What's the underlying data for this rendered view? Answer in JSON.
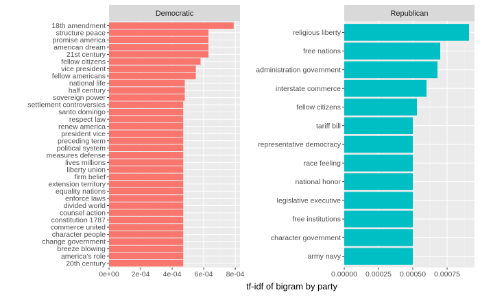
{
  "chart_data": {
    "type": "bar",
    "orientation": "horizontal",
    "xlabel": "tf-idf of bigram by party",
    "panels": [
      {
        "name": "Democratic",
        "color": "#F8766D",
        "xlim": [
          0,
          0.00083
        ],
        "xticks": [
          0,
          0.0002,
          0.0004,
          0.0006,
          0.0008
        ],
        "xtick_labels": [
          "0e+00",
          "2e-04",
          "4e-04",
          "6e-04",
          "8e-04"
        ],
        "categories": [
          "18th amendment",
          "structure peace",
          "promise america",
          "american dream",
          "21st century",
          "fellow citizens",
          "vice president",
          "fellow americans",
          "national life",
          "half century",
          "sovereign power",
          "settlement controversies",
          "santo domingo",
          "respect law",
          "renew america",
          "president vice",
          "preceding term",
          "political system",
          "measures defense",
          "lives millions",
          "liberty union",
          "firm belief",
          "extension territory",
          "equality nations",
          "enforce laws",
          "divided world",
          "counsel action",
          "constitution 1787",
          "commerce united",
          "character people",
          "change government",
          "breeze blowing",
          "america's role",
          "20th century"
        ],
        "values": [
          0.00079,
          0.00063,
          0.00063,
          0.00063,
          0.00063,
          0.00058,
          0.00055,
          0.00055,
          0.00048,
          0.00048,
          0.00048,
          0.00047,
          0.00047,
          0.00047,
          0.00047,
          0.00047,
          0.00047,
          0.00047,
          0.00047,
          0.00047,
          0.00047,
          0.00047,
          0.00047,
          0.00047,
          0.00047,
          0.00047,
          0.00047,
          0.00047,
          0.00047,
          0.00047,
          0.00047,
          0.00047,
          0.00047,
          0.00047
        ]
      },
      {
        "name": "Republican",
        "color": "#00BFC4",
        "xlim": [
          0,
          0.00095
        ],
        "xticks": [
          0,
          0.00025,
          0.0005,
          0.00075
        ],
        "xtick_labels": [
          "0.00000",
          "0.00025",
          "0.00050",
          "0.00075"
        ],
        "categories": [
          "religious liberty",
          "free nations",
          "administration government",
          "interstate commerce",
          "fellow citizens",
          "tariff bill",
          "representative democracy",
          "race feeling",
          "national honor",
          "legislative executive",
          "free institutions",
          "character government",
          "army navy"
        ],
        "values": [
          0.00091,
          0.0007,
          0.00068,
          0.0006,
          0.00053,
          0.0005,
          0.0005,
          0.0005,
          0.0005,
          0.0005,
          0.0005,
          0.0005,
          0.0005
        ]
      }
    ]
  }
}
